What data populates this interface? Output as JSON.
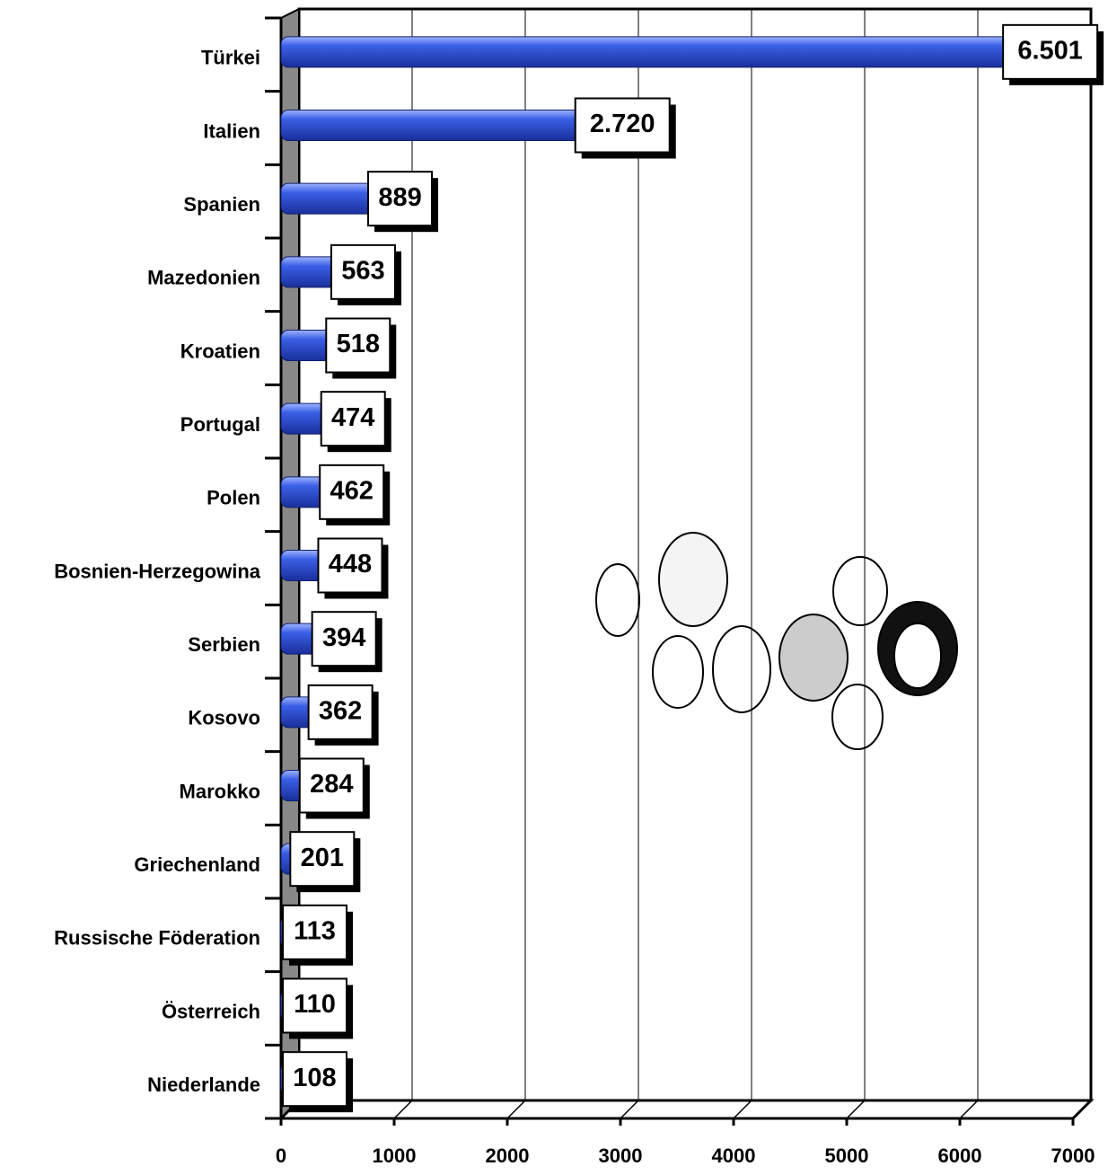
{
  "chart_data": {
    "type": "bar",
    "orientation": "horizontal",
    "categories": [
      "Türkei",
      "Italien",
      "Spanien",
      "Mazedonien",
      "Kroatien",
      "Portugal",
      "Polen",
      "Bosnien-Herzegowina",
      "Serbien",
      "Kosovo",
      "Marokko",
      "Griechenland",
      "Russische Föderation",
      "Österreich",
      "Niederlande"
    ],
    "values": [
      6501,
      2720,
      889,
      563,
      518,
      474,
      462,
      448,
      394,
      362,
      284,
      201,
      113,
      110,
      108
    ],
    "value_labels": [
      "6.501",
      "2.720",
      "889",
      "563",
      "518",
      "474",
      "462",
      "448",
      "394",
      "362",
      "284",
      "201",
      "113",
      "110",
      "108"
    ],
    "color": "#3a5fe6",
    "xlim": [
      0,
      7000
    ],
    "xticks": [
      0,
      1000,
      2000,
      3000,
      4000,
      5000,
      6000,
      7000
    ],
    "grid": true
  }
}
